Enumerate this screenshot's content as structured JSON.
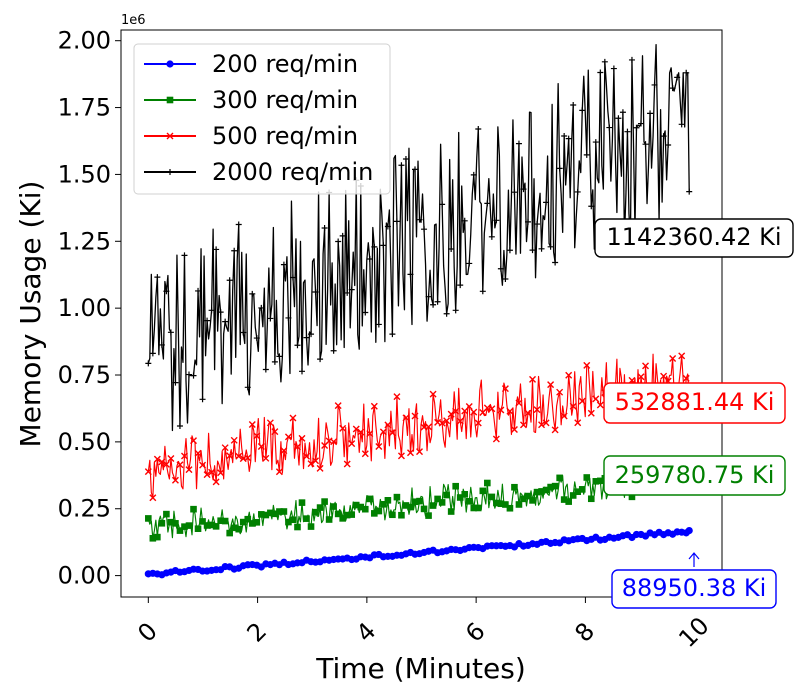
{
  "chart_data": {
    "type": "line",
    "xlabel": "Time (Minutes)",
    "ylabel": "Memory Usage (Ki)",
    "y_offset_label": "1e6",
    "xlim": [
      -0.5,
      10.5
    ],
    "ylim": [
      -80000,
      2040000
    ],
    "x_ticks": [
      0,
      2,
      4,
      6,
      8,
      10
    ],
    "x_tick_labels": [
      "0",
      "2",
      "4",
      "6",
      "8",
      "10"
    ],
    "y_ticks": [
      0,
      250000,
      500000,
      750000,
      1000000,
      1250000,
      1500000,
      1750000,
      2000000
    ],
    "y_tick_labels": [
      "0.00",
      "0.25",
      "0.50",
      "0.75",
      "1.00",
      "1.25",
      "1.50",
      "1.75",
      "2.00"
    ],
    "grid": false,
    "legend_position": "top-left",
    "series": [
      {
        "name": "200 req/min",
        "color": "#0000ff",
        "marker": "circle",
        "trend": {
          "x_start": 0,
          "x_end": 9.9,
          "y_start": 5000,
          "y_end": 165000
        },
        "noise_amplitude": 18000,
        "annotation": {
          "text": "88950.38 Ki",
          "x": 9.9,
          "y": 88950.38
        }
      },
      {
        "name": "300 req/min",
        "color": "#008000",
        "marker": "square",
        "trend": {
          "x_start": 0,
          "x_end": 9.9,
          "y_start": 160000,
          "y_end": 350000
        },
        "noise_amplitude": 65000,
        "annotation": {
          "text": "259780.75 Ki",
          "x": 9.9,
          "y": 259780.75
        }
      },
      {
        "name": "500 req/min",
        "color": "#ff0000",
        "marker": "x",
        "trend": {
          "x_start": 0,
          "x_end": 9.9,
          "y_start": 360000,
          "y_end": 700000
        },
        "noise_amplitude": 120000,
        "annotation": {
          "text": "532881.44 Ki",
          "x": 9.9,
          "y": 532881.44
        }
      },
      {
        "name": "2000 req/min",
        "color": "#000000",
        "marker": "plus",
        "trend": {
          "x_start": 0,
          "x_end": 9.9,
          "y_start": 700000,
          "y_end": 1550000
        },
        "noise_amplitude": 360000,
        "annotation": {
          "text": "1142360.42 Ki",
          "x": 9.9,
          "y": 1142360.42
        }
      }
    ]
  }
}
